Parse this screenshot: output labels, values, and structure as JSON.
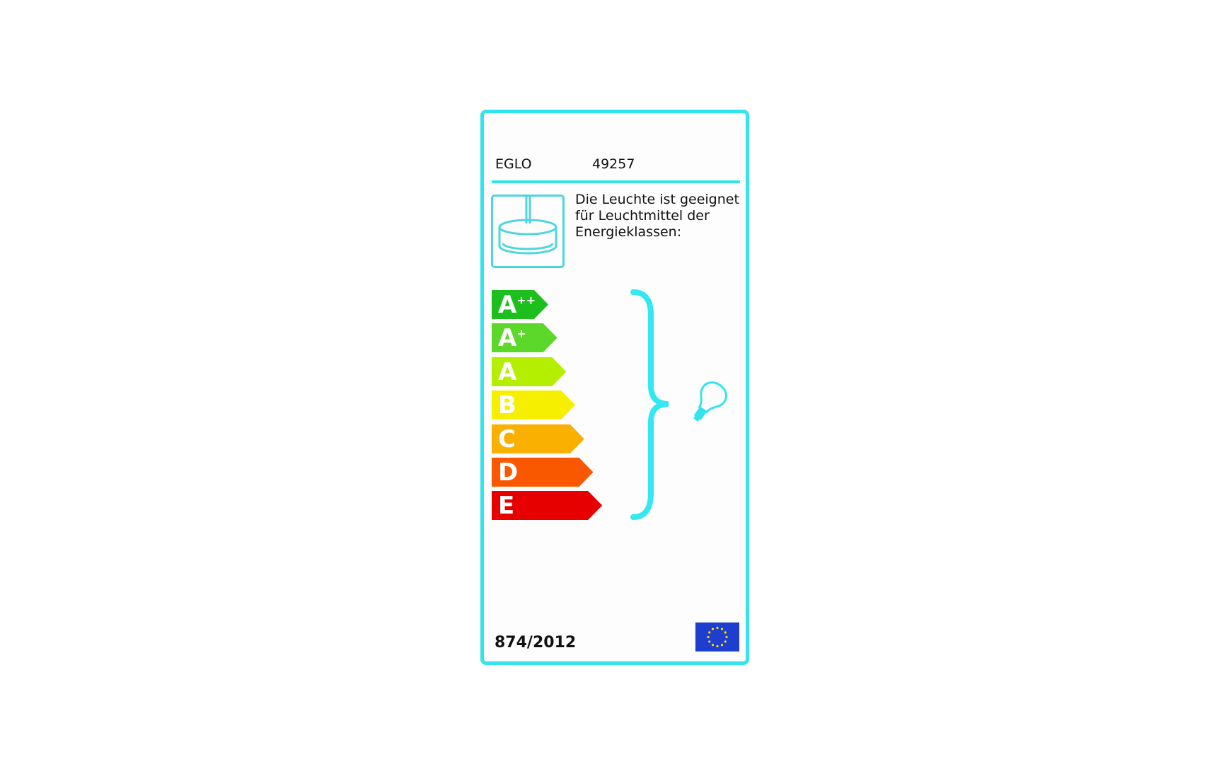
{
  "label": {
    "brand": "EGLO",
    "model": "49257",
    "description_lines": [
      "Die Leuchte ist geeignet",
      "für Leuchtmittel der",
      "Energieklassen:"
    ],
    "classes": [
      {
        "letter": "A",
        "sup": "++",
        "color": "#1cbf1c"
      },
      {
        "letter": "A",
        "sup": "+",
        "color": "#5cd82a"
      },
      {
        "letter": "A",
        "sup": "",
        "color": "#b4ee00"
      },
      {
        "letter": "B",
        "sup": "",
        "color": "#f6f000"
      },
      {
        "letter": "C",
        "sup": "",
        "color": "#f9b000"
      },
      {
        "letter": "D",
        "sup": "",
        "color": "#f95800"
      },
      {
        "letter": "E",
        "sup": "",
        "color": "#e60000"
      }
    ],
    "regulation": "874/2012",
    "accent_color": "#33e4ee",
    "icons": [
      "pendant-lamp-icon",
      "bracket-icon",
      "light-bulb-icon",
      "eu-flag-icon"
    ]
  }
}
